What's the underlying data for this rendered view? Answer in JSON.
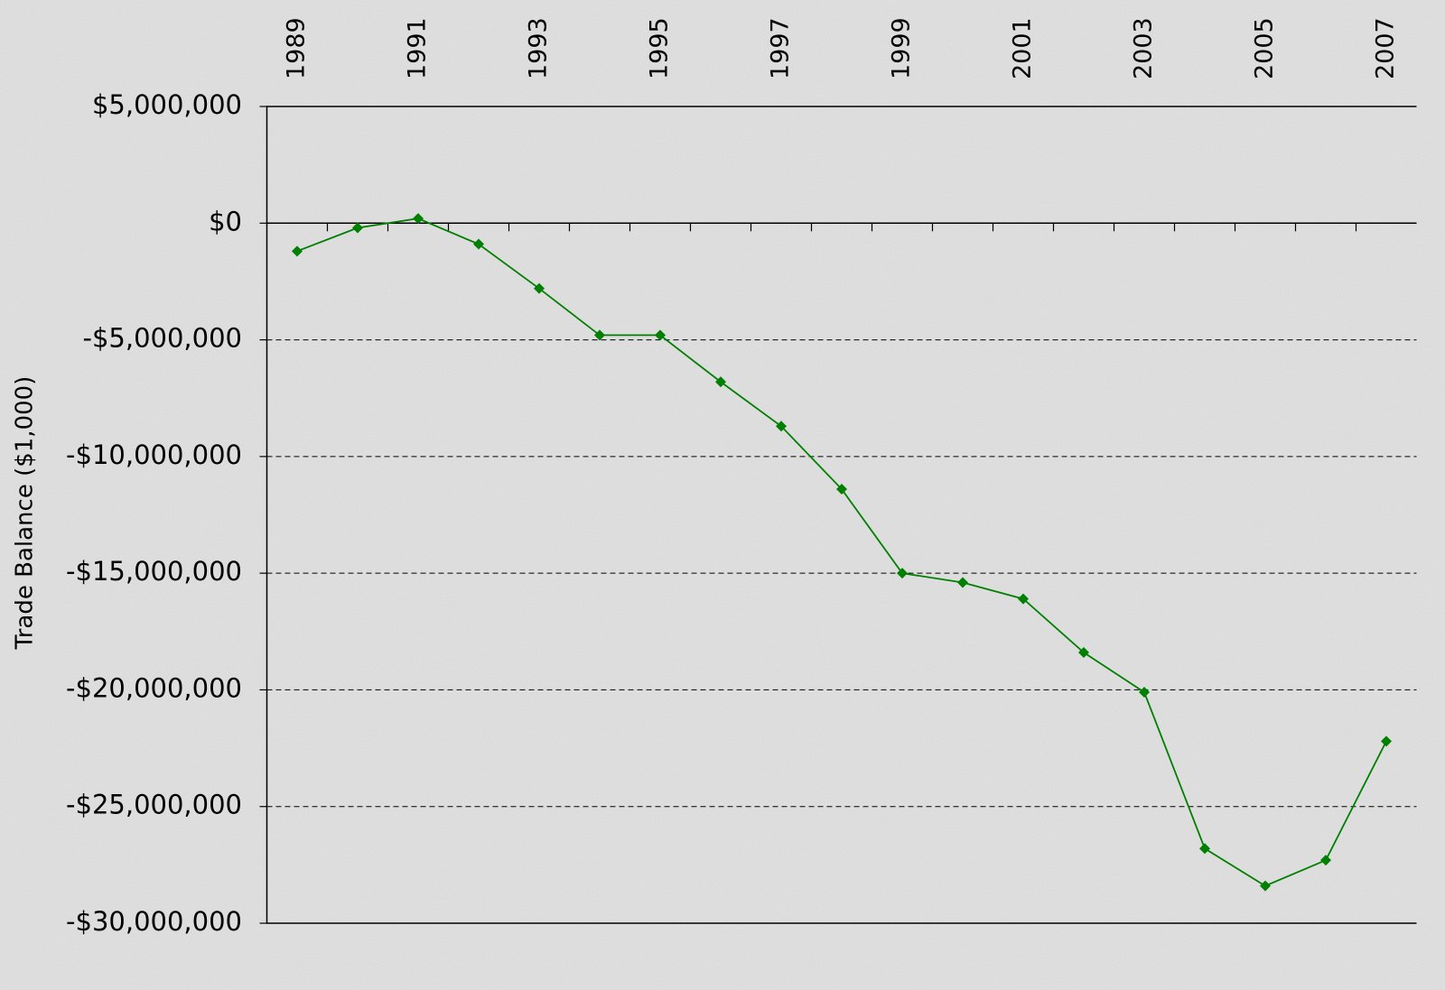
{
  "chart_data": {
    "type": "line",
    "y_label": "Trade Balance ($1,000)",
    "categories": [
      "1989",
      null,
      "1991",
      null,
      "1993",
      null,
      "1995",
      null,
      "1997",
      null,
      "1999",
      null,
      "2001",
      null,
      "2003",
      null,
      "2005",
      null,
      "2007"
    ],
    "series": [
      {
        "name": "Trade Balance",
        "color": "#008000",
        "values": [
          -1200000,
          -200000,
          200000,
          -900000,
          -2800000,
          -4800000,
          -4800000,
          -6800000,
          -8700000,
          -11400000,
          -15000000,
          -15400000,
          -16100000,
          -18400000,
          -20100000,
          -26800000,
          -28400000,
          -27300000,
          -22200000
        ]
      }
    ],
    "ylim": [
      -30000000,
      5000000
    ],
    "yticks": [
      {
        "value": -30000000,
        "label": "-$30,000,000"
      },
      {
        "value": -25000000,
        "label": "-$25,000,000"
      },
      {
        "value": -20000000,
        "label": "-$20,000,000"
      },
      {
        "value": -15000000,
        "label": "-$15,000,000"
      },
      {
        "value": -10000000,
        "label": "-$10,000,000"
      },
      {
        "value": -5000000,
        "label": "-$5,000,000"
      },
      {
        "value": 0,
        "label": "$0"
      },
      {
        "value": 5000000,
        "label": "$5,000,000"
      }
    ],
    "grid": true
  }
}
